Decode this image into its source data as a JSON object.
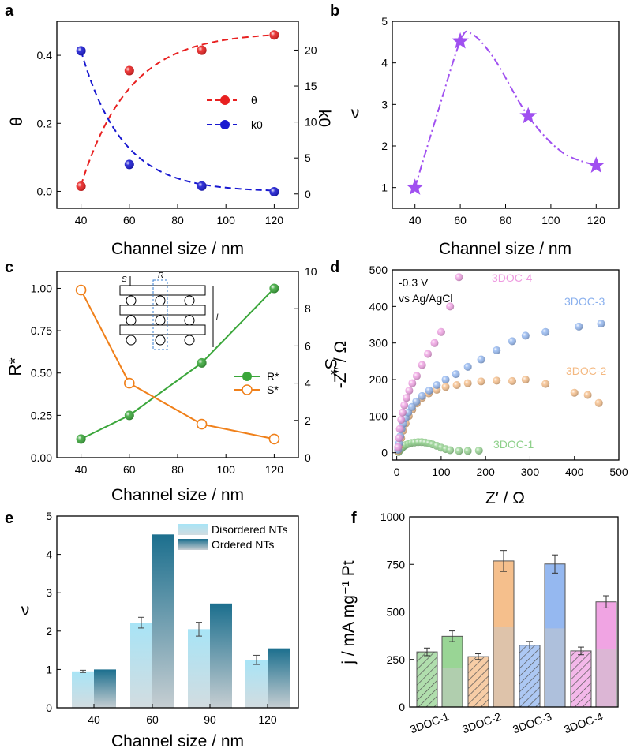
{
  "panels": [
    {
      "id": "a",
      "label": "a"
    },
    {
      "id": "b",
      "label": "b"
    },
    {
      "id": "c",
      "label": "c"
    },
    {
      "id": "d",
      "label": "d"
    },
    {
      "id": "e",
      "label": "e"
    },
    {
      "id": "f",
      "label": "f"
    }
  ],
  "chart_data": [
    {
      "panel": "a",
      "type": "scatter",
      "xlabel": "Channel size / nm",
      "ylabel": "θ",
      "y2label": "k0",
      "xlim": [
        30,
        130
      ],
      "ylim": [
        -0.05,
        0.5
      ],
      "y2lim": [
        -2,
        24
      ],
      "xticks": [
        40,
        60,
        80,
        100,
        120
      ],
      "yticks": [
        0.0,
        0.2,
        0.4
      ],
      "y2ticks": [
        0,
        5,
        10,
        15,
        20
      ],
      "series": [
        {
          "name": "θ",
          "axis": "left",
          "color": "#e82020",
          "x": [
            40,
            60,
            90,
            120
          ],
          "y": [
            0.015,
            0.355,
            0.415,
            0.46
          ]
        },
        {
          "name": "k0",
          "axis": "right",
          "color": "#1818d0",
          "x": [
            40,
            60,
            90,
            120
          ],
          "y": [
            19.9,
            4.1,
            1.1,
            0.3
          ]
        }
      ]
    },
    {
      "panel": "b",
      "type": "line",
      "xlabel": "Channel size / nm",
      "ylabel": "ν",
      "xlim": [
        30,
        130
      ],
      "ylim": [
        0.5,
        5
      ],
      "xticks": [
        40,
        60,
        80,
        100,
        120
      ],
      "yticks": [
        1,
        2,
        3,
        4,
        5
      ],
      "series": [
        {
          "color": "#a050f0",
          "x": [
            40,
            60,
            90,
            120
          ],
          "y": [
            1.0,
            4.52,
            2.72,
            1.53
          ]
        }
      ]
    },
    {
      "panel": "c",
      "type": "line",
      "xlabel": "Channel size / nm",
      "ylabel": "R*",
      "y2label": "S*",
      "xlim": [
        30,
        130
      ],
      "ylim": [
        0,
        1.1
      ],
      "y2lim": [
        0,
        10
      ],
      "xticks": [
        40,
        60,
        80,
        100,
        120
      ],
      "yticks": [
        0.0,
        0.25,
        0.5,
        0.75,
        1.0
      ],
      "y2ticks": [
        0,
        2,
        4,
        6,
        8,
        10
      ],
      "inset_labels": [
        "S",
        "R",
        "l"
      ],
      "series": [
        {
          "name": "R*",
          "axis": "left",
          "color": "#3aa63a",
          "x": [
            40,
            60,
            90,
            120
          ],
          "y": [
            0.11,
            0.25,
            0.56,
            1.0
          ]
        },
        {
          "name": "S*",
          "axis": "right",
          "color": "#f0801a",
          "x": [
            40,
            60,
            90,
            120
          ],
          "y": [
            9.0,
            4.0,
            1.8,
            1.0
          ]
        }
      ]
    },
    {
      "panel": "d",
      "type": "scatter",
      "xlabel": "Z′ / Ω",
      "ylabel": "-Z″ / Ω",
      "xlim": [
        -10,
        500
      ],
      "ylim": [
        -20,
        500
      ],
      "xticks": [
        0,
        100,
        200,
        300,
        400,
        500
      ],
      "yticks": [
        0,
        100,
        200,
        300,
        400,
        500
      ],
      "annotation": [
        "-0.3 V",
        "vs Ag/AgCl"
      ],
      "series": [
        {
          "name": "3DOC-1",
          "color": "#8ed08a",
          "x": [
            4,
            7,
            11,
            15,
            20,
            26,
            33,
            40,
            48,
            56,
            64,
            72,
            80,
            90,
            100,
            110,
            120,
            140,
            160,
            185
          ],
          "y": [
            2,
            7,
            12,
            17,
            21,
            24,
            27,
            28,
            29,
            29,
            28,
            26,
            23,
            19,
            14,
            10,
            7,
            5,
            5,
            6
          ]
        },
        {
          "name": "3DOC-2",
          "color": "#f4b880",
          "x": [
            3,
            6,
            10,
            14,
            20,
            27,
            35,
            45,
            57,
            72,
            90,
            110,
            135,
            160,
            190,
            225,
            260,
            290,
            335,
            400,
            430,
            455
          ],
          "y": [
            5,
            20,
            40,
            60,
            80,
            100,
            118,
            135,
            150,
            162,
            172,
            180,
            185,
            190,
            195,
            197,
            196,
            200,
            188,
            164,
            158,
            136
          ]
        },
        {
          "name": "3DOC-3",
          "color": "#8ab0ee",
          "x": [
            3,
            5,
            8,
            11,
            15,
            20,
            26,
            34,
            44,
            57,
            73,
            90,
            110,
            133,
            160,
            190,
            225,
            260,
            290,
            335,
            410,
            460
          ],
          "y": [
            8,
            25,
            45,
            65,
            80,
            95,
            110,
            125,
            140,
            155,
            170,
            185,
            200,
            215,
            235,
            255,
            280,
            305,
            320,
            330,
            345,
            353
          ]
        },
        {
          "name": "3DOC-4",
          "color": "#ee9ae0",
          "x": [
            3,
            5,
            7,
            10,
            13,
            17,
            22,
            28,
            35,
            45,
            57,
            70,
            85,
            100,
            120,
            140
          ],
          "y": [
            15,
            40,
            65,
            90,
            110,
            130,
            150,
            170,
            190,
            210,
            240,
            270,
            300,
            330,
            400,
            480
          ]
        }
      ]
    },
    {
      "panel": "e",
      "type": "bar",
      "xlabel": "Channel size / nm",
      "ylabel": "ν",
      "ylim": [
        0,
        5
      ],
      "yticks": [
        0,
        1,
        2,
        3,
        4,
        5
      ],
      "categories": [
        "40",
        "60",
        "90",
        "120"
      ],
      "series": [
        {
          "name": "Disordered NTs",
          "color": "#a8e4f6",
          "values": [
            0.95,
            2.22,
            2.05,
            1.25
          ],
          "errors": [
            0.03,
            0.14,
            0.18,
            0.12
          ]
        },
        {
          "name": "Ordered NTs",
          "color": "#1c6f8e",
          "values": [
            1.0,
            4.52,
            2.72,
            1.55
          ]
        }
      ]
    },
    {
      "panel": "f",
      "type": "bar",
      "ylabel": "j / mA mg⁻¹ Pt",
      "ylim": [
        0,
        1000
      ],
      "yticks": [
        0,
        250,
        500,
        750,
        1000
      ],
      "categories": [
        "3DOC-1",
        "3DOC-2",
        "3DOC-3",
        "3DOC-4"
      ],
      "bars": [
        {
          "category": "3DOC-1",
          "hatched": true,
          "color": "#8ed08a",
          "value": 290,
          "error": 20
        },
        {
          "category": "3DOC-1",
          "hatched": false,
          "color": "#8ed08a",
          "value": 372,
          "error": 28
        },
        {
          "category": "3DOC-2",
          "hatched": true,
          "color": "#f4b880",
          "value": 265,
          "error": 15
        },
        {
          "category": "3DOC-2",
          "hatched": false,
          "color": "#f4b880",
          "value": 768,
          "error": 55
        },
        {
          "category": "3DOC-3",
          "hatched": true,
          "color": "#8ab0ee",
          "value": 325,
          "error": 20
        },
        {
          "category": "3DOC-3",
          "hatched": false,
          "color": "#8ab0ee",
          "value": 752,
          "error": 48
        },
        {
          "category": "3DOC-4",
          "hatched": true,
          "color": "#ee9ae0",
          "value": 295,
          "error": 20
        },
        {
          "category": "3DOC-4",
          "hatched": false,
          "color": "#ee9ae0",
          "value": 553,
          "error": 32
        }
      ]
    }
  ]
}
